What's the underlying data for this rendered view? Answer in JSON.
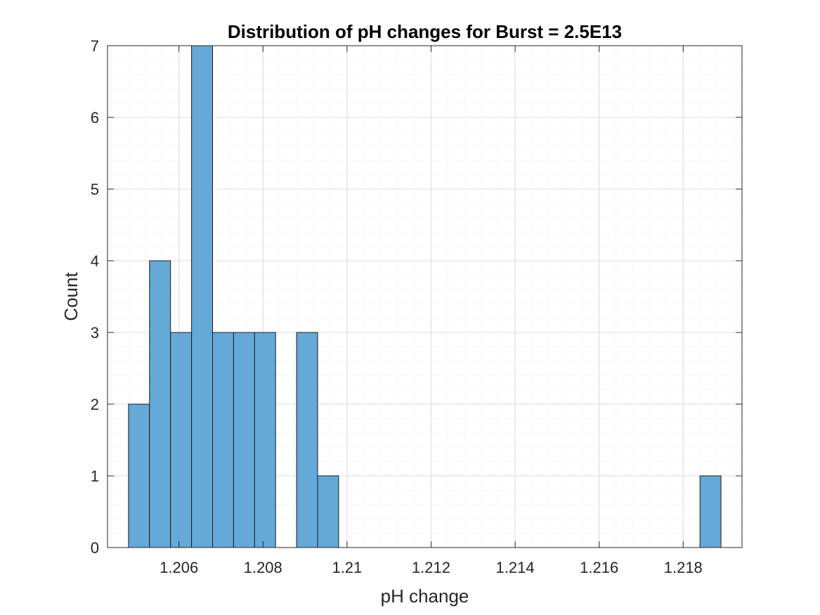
{
  "chart_data": {
    "type": "bar",
    "title": "Distribution of pH changes for Burst = 2.5E13",
    "xlabel": "pH change",
    "ylabel": "Count",
    "xlim": [
      1.2043,
      1.2194
    ],
    "ylim": [
      0,
      7
    ],
    "bin_width": 0.0005,
    "bins": [
      {
        "start": 1.2048,
        "end": 1.2053,
        "count": 2
      },
      {
        "start": 1.2053,
        "end": 1.2058,
        "count": 4
      },
      {
        "start": 1.2058,
        "end": 1.2063,
        "count": 3
      },
      {
        "start": 1.2063,
        "end": 1.2068,
        "count": 7
      },
      {
        "start": 1.2068,
        "end": 1.2073,
        "count": 3
      },
      {
        "start": 1.2073,
        "end": 1.2078,
        "count": 3
      },
      {
        "start": 1.2078,
        "end": 1.2083,
        "count": 3
      },
      {
        "start": 1.2083,
        "end": 1.2088,
        "count": 0
      },
      {
        "start": 1.2088,
        "end": 1.2093,
        "count": 3
      },
      {
        "start": 1.2093,
        "end": 1.2098,
        "count": 1
      },
      {
        "start": 1.2184,
        "end": 1.2189,
        "count": 1
      }
    ],
    "x_ticks": [
      1.206,
      1.208,
      1.21,
      1.212,
      1.214,
      1.216,
      1.218
    ],
    "x_tick_labels": [
      "1.206",
      "1.208",
      "1.21",
      "1.212",
      "1.214",
      "1.216",
      "1.218"
    ],
    "y_ticks": [
      0,
      1,
      2,
      3,
      4,
      5,
      6,
      7
    ],
    "y_tick_labels": [
      "0",
      "1",
      "2",
      "3",
      "4",
      "5",
      "6",
      "7"
    ],
    "grid": true,
    "minor_grid": true,
    "legend": "none",
    "colors": {
      "bar_fill": "#64a9d8",
      "bar_edge": "#1a1a1a",
      "axis": "#262626",
      "grid": "#dcdcdc"
    }
  }
}
